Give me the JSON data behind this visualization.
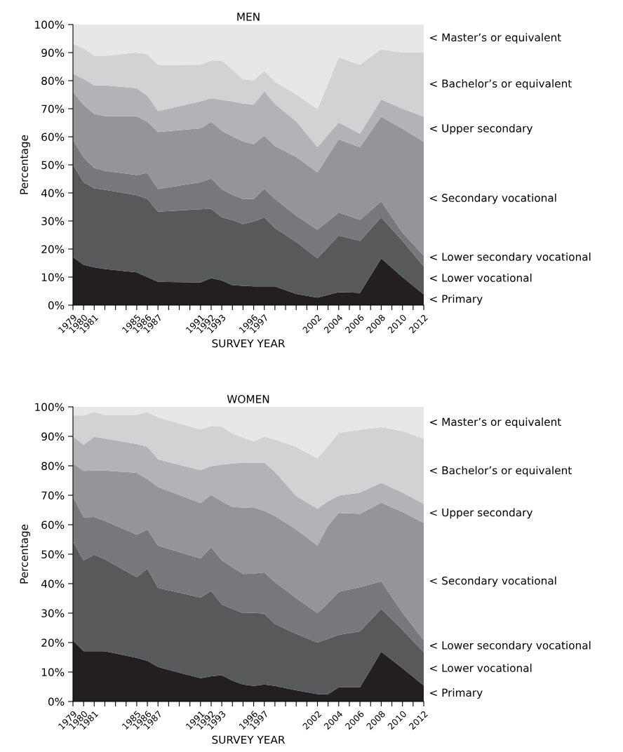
{
  "chart_data": [
    {
      "type": "area",
      "stacked": true,
      "title": "MEN",
      "xlabel": "SURVEY YEAR",
      "ylabel": "Percentage",
      "x": [
        1979,
        1980,
        1981,
        1982,
        1985,
        1986,
        1987,
        1991,
        1992,
        1993,
        1994,
        1995,
        1996,
        1997,
        1998,
        2000,
        2002,
        2004,
        2006,
        2008,
        2010,
        2012
      ],
      "series": [
        {
          "name": "< Primary",
          "color": "#231f20",
          "values": [
            17.1,
            14.4,
            13.5,
            12.9,
            11.7,
            10.0,
            8.3,
            8.1,
            9.6,
            8.8,
            7.1,
            6.9,
            6.7,
            6.7,
            6.7,
            4.0,
            2.7,
            4.6,
            4.4,
            16.7,
            10.0,
            3.8
          ]
        },
        {
          "name": "< Lower vocational",
          "color": "#58595b",
          "values": [
            32.9,
            29.4,
            28.2,
            28.2,
            27.5,
            27.9,
            25.0,
            26.1,
            24.8,
            22.5,
            23.2,
            22.0,
            23.1,
            24.6,
            20.8,
            18.5,
            14.0,
            20.2,
            18.5,
            14.6,
            12.9,
            10.0
          ]
        },
        {
          "name": "< Lower secondary vocational",
          "color": "#77787b",
          "values": [
            8.9,
            8.8,
            7.2,
            6.8,
            7.2,
            9.2,
            8.1,
            9.6,
            10.8,
            10.0,
            9.0,
            8.9,
            8.0,
            10.2,
            10.4,
            9.4,
            10.2,
            8.2,
            7.5,
            5.7,
            2.9,
            3.8
          ]
        },
        {
          "name": "< Secondary vocational",
          "color": "#939598",
          "values": [
            17.1,
            18.8,
            19.2,
            19.5,
            20.9,
            18.3,
            20.3,
            19.2,
            20.1,
            20.9,
            20.8,
            20.6,
            19.6,
            18.9,
            18.8,
            20.9,
            20.4,
            26.1,
            25.9,
            30.2,
            37.1,
            40.6
          ]
        },
        {
          "name": "< Upper secondary",
          "color": "#b1b3b6",
          "values": [
            6.5,
            9.2,
            10.2,
            10.9,
            10.0,
            9.2,
            7.5,
            9.6,
            8.4,
            11.0,
            12.5,
            13.4,
            14.1,
            15.8,
            15.0,
            12.7,
            9.0,
            6.0,
            4.8,
            6.1,
            7.1,
            9.0
          ]
        },
        {
          "name": "< Bachelor’s or equivalent",
          "color": "#d1d2d4",
          "values": [
            10.6,
            10.9,
            10.6,
            10.6,
            12.7,
            14.8,
            16.4,
            13.1,
            13.5,
            14.0,
            11.3,
            8.7,
            8.6,
            7.3,
            7.9,
            9.6,
            13.5,
            23.2,
            24.6,
            17.9,
            20.0,
            22.9
          ]
        },
        {
          "name": "< Master’s or equivalent",
          "color": "#e6e7e8",
          "values": [
            6.9,
            8.8,
            11.1,
            11.1,
            10.0,
            10.6,
            14.4,
            14.4,
            12.9,
            12.9,
            16.3,
            19.6,
            20.0,
            16.7,
            20.4,
            25.0,
            30.3,
            11.8,
            14.4,
            8.9,
            10.0,
            10.0
          ]
        }
      ],
      "xlim": [
        1979,
        2012
      ],
      "xticks": [
        1979,
        1980,
        1981,
        {
          "value": 1982,
          "label": null
        },
        {
          "value": 1983,
          "label": null
        },
        {
          "value": 1984,
          "label": null
        },
        1985,
        1986,
        1987,
        {
          "value": 1988,
          "label": null
        },
        {
          "value": 1989,
          "label": null
        },
        {
          "value": 1990,
          "label": null
        },
        1991,
        1992,
        1993,
        {
          "value": 1994,
          "label": null
        },
        {
          "value": 1995,
          "label": null
        },
        1996,
        1997,
        {
          "value": 1998,
          "label": null
        },
        {
          "value": 1999,
          "label": null
        },
        {
          "value": 2000,
          "label": null
        },
        {
          "value": 2001,
          "label": null
        },
        2002,
        {
          "value": 2003,
          "label": null
        },
        2004,
        {
          "value": 2005,
          "label": null
        },
        2006,
        {
          "value": 2007,
          "label": null
        },
        2008,
        {
          "value": 2009,
          "label": null
        },
        2010,
        {
          "value": 2011,
          "label": null
        },
        2012
      ],
      "ylim": [
        0,
        100
      ],
      "yticks": [
        {
          "value": 0,
          "label": "0%"
        },
        {
          "value": 10,
          "label": "10%"
        },
        {
          "value": 20,
          "label": "20%"
        },
        {
          "value": 30,
          "label": "30%"
        },
        {
          "value": 40,
          "label": "40%"
        },
        {
          "value": 50,
          "label": "50%"
        },
        {
          "value": 60,
          "label": "60%"
        },
        {
          "value": 70,
          "label": "70%"
        },
        {
          "value": 80,
          "label": "80%"
        },
        {
          "value": 90,
          "label": "90%"
        },
        {
          "value": 100,
          "label": "100%"
        }
      ]
    },
    {
      "type": "area",
      "stacked": true,
      "title": "WOMEN",
      "xlabel": "SURVEY YEAR",
      "ylabel": "Percentage",
      "x": [
        1979,
        1980,
        1981,
        1982,
        1985,
        1986,
        1987,
        1991,
        1992,
        1993,
        1994,
        1995,
        1996,
        1997,
        1998,
        2000,
        2002,
        2003,
        2004,
        2006,
        2008,
        2010,
        2012
      ],
      "series": [
        {
          "name": "< Primary",
          "color": "#231f20",
          "values": [
            20.7,
            17.1,
            17.1,
            17.1,
            14.8,
            13.8,
            11.7,
            7.9,
            8.6,
            8.9,
            7.1,
            5.8,
            5.3,
            5.8,
            5.3,
            3.8,
            2.5,
            2.5,
            4.8,
            4.8,
            16.9,
            11.3,
            5.4
          ]
        },
        {
          "name": "< Lower vocational",
          "color": "#58595b",
          "values": [
            33.5,
            30.8,
            32.7,
            31.2,
            27.4,
            31.3,
            26.9,
            27.4,
            28.9,
            24.0,
            24.3,
            24.2,
            24.8,
            24.0,
            21.0,
            19.2,
            17.5,
            18.8,
            17.8,
            19.0,
            14.5,
            13.0,
            11.3
          ]
        },
        {
          "name": "< Lower secondary vocational",
          "color": "#77787b",
          "values": [
            15.4,
            14.6,
            12.8,
            13.0,
            14.4,
            13.3,
            14.3,
            13.3,
            14.8,
            15.0,
            14.2,
            13.3,
            13.3,
            14.0,
            14.2,
            12.1,
            10.0,
            12.1,
            14.6,
            15.0,
            9.4,
            5.8,
            4.1
          ]
        },
        {
          "name": "< Secondary vocational",
          "color": "#939598",
          "values": [
            11.2,
            15.8,
            15.8,
            17.1,
            21.0,
            17.1,
            19.9,
            18.8,
            17.8,
            20.0,
            20.5,
            22.5,
            22.5,
            20.9,
            22.5,
            23.3,
            22.9,
            26.3,
            26.8,
            24.9,
            26.7,
            34.2,
            39.8
          ]
        },
        {
          "name": "< Upper secondary",
          "color": "#b1b3b6",
          "values": [
            9.2,
            8.8,
            11.5,
            10.9,
            9.8,
            11.0,
            9.4,
            11.1,
            9.8,
            12.5,
            14.7,
            15.3,
            15.2,
            16.4,
            15.0,
            11.3,
            12.5,
            8.3,
            5.9,
            7.2,
            6.7,
            6.6,
            6.5
          ]
        },
        {
          "name": "< Bachelor’s or equivalent",
          "color": "#d1d2d4",
          "values": [
            7.1,
            10.0,
            8.4,
            7.9,
            9.9,
            11.7,
            14.2,
            13.8,
            13.6,
            12.9,
            10.2,
            8.5,
            7.1,
            8.8,
            10.9,
            16.7,
            17.1,
            18.8,
            21.3,
            21.3,
            18.9,
            20.9,
            22.1
          ]
        },
        {
          "name": "< Master’s or equivalent",
          "color": "#e6e7e8",
          "values": [
            2.9,
            2.9,
            1.9,
            2.9,
            2.9,
            1.9,
            3.8,
            7.9,
            6.7,
            6.7,
            9.0,
            10.4,
            11.9,
            10.3,
            11.3,
            13.8,
            17.5,
            13.3,
            9.0,
            7.9,
            6.9,
            8.3,
            10.8
          ]
        }
      ],
      "xlim": [
        1979,
        2012
      ],
      "xticks": [
        1979,
        1980,
        1981,
        {
          "value": 1982,
          "label": null
        },
        {
          "value": 1983,
          "label": null
        },
        {
          "value": 1984,
          "label": null
        },
        1985,
        1986,
        1987,
        {
          "value": 1988,
          "label": null
        },
        {
          "value": 1989,
          "label": null
        },
        {
          "value": 1990,
          "label": null
        },
        1991,
        1992,
        1993,
        {
          "value": 1994,
          "label": null
        },
        {
          "value": 1995,
          "label": null
        },
        1996,
        1997,
        {
          "value": 1998,
          "label": null
        },
        {
          "value": 1999,
          "label": null
        },
        {
          "value": 2000,
          "label": null
        },
        {
          "value": 2001,
          "label": null
        },
        2002,
        {
          "value": 2003,
          "label": null
        },
        2004,
        {
          "value": 2005,
          "label": null
        },
        2006,
        {
          "value": 2007,
          "label": null
        },
        2008,
        {
          "value": 2009,
          "label": null
        },
        2010,
        {
          "value": 2011,
          "label": null
        },
        2012
      ],
      "ylim": [
        0,
        100
      ],
      "yticks": [
        {
          "value": 0,
          "label": "0%"
        },
        {
          "value": 10,
          "label": "10%"
        },
        {
          "value": 20,
          "label": "20%"
        },
        {
          "value": 30,
          "label": "30%"
        },
        {
          "value": 40,
          "label": "40%"
        },
        {
          "value": 50,
          "label": "50%"
        },
        {
          "value": 60,
          "label": "60%"
        },
        {
          "value": 70,
          "label": "70%"
        },
        {
          "value": 80,
          "label": "80%"
        },
        {
          "value": 90,
          "label": "90%"
        },
        {
          "value": 100,
          "label": "100%"
        }
      ]
    }
  ]
}
